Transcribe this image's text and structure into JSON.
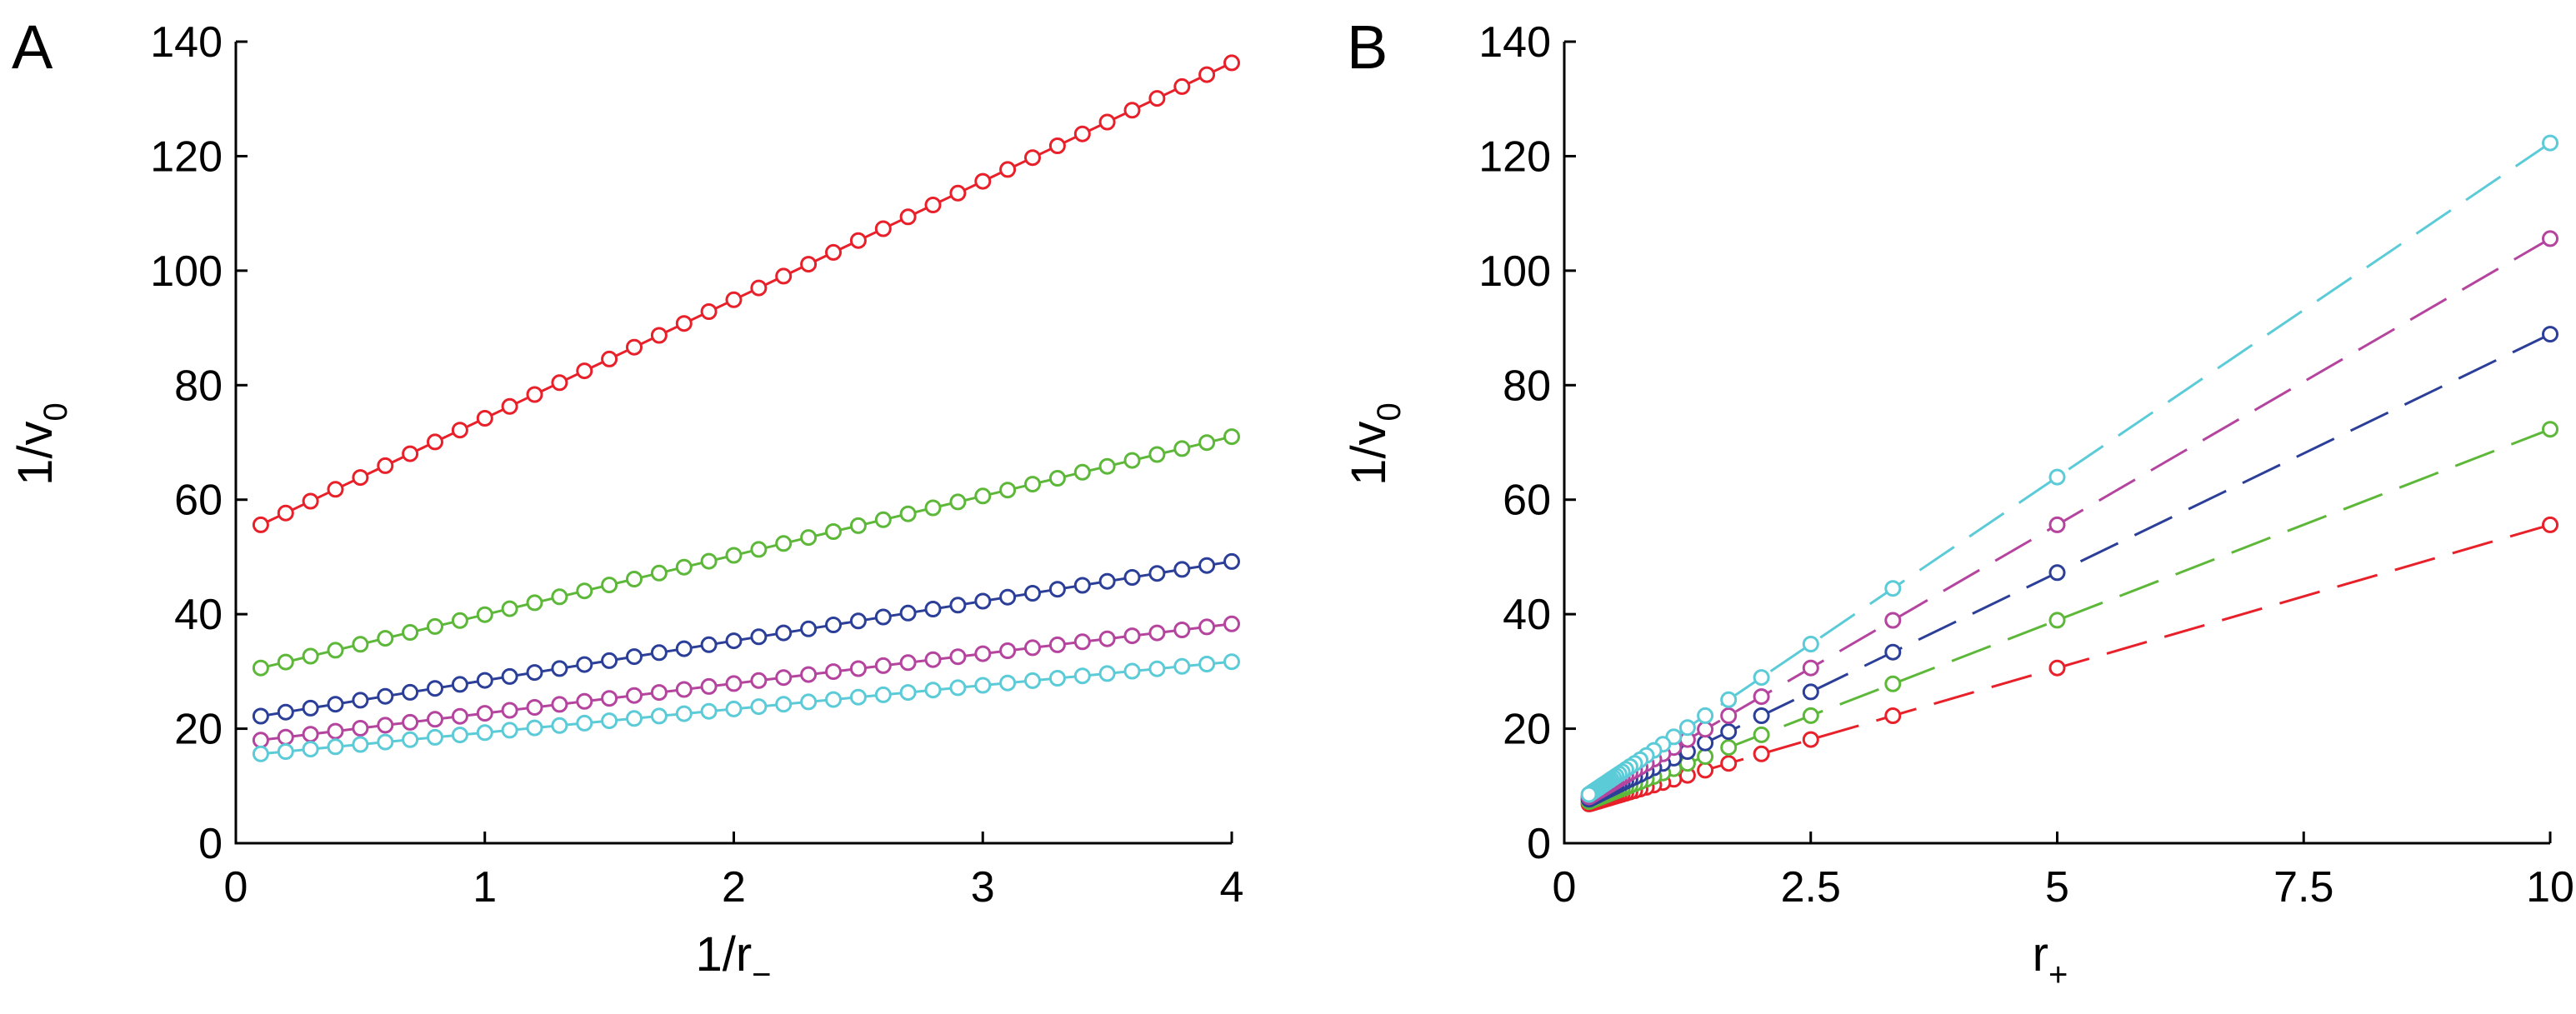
{
  "chart_data": [
    {
      "type": "line",
      "panel_label": "A",
      "xlabel": {
        "main": "1/r",
        "sub": "−"
      },
      "ylabel": {
        "main": "1/v",
        "sub": "0"
      },
      "xlim": [
        0,
        4
      ],
      "ylim": [
        0,
        140
      ],
      "xticks": [
        0,
        1,
        2,
        3,
        4
      ],
      "xtick_labels": [
        "0",
        "1",
        "2",
        "3",
        "4"
      ],
      "yticks": [
        0,
        20,
        40,
        60,
        80,
        100,
        120,
        140
      ],
      "ytick_labels": [
        "0",
        "20",
        "40",
        "60",
        "80",
        "100",
        "120",
        "140"
      ],
      "linestyle": "solid",
      "series": [
        {
          "name": "red",
          "color": "#e8202a",
          "x_start": 0.1,
          "x_end": 4.0,
          "n_points": 40,
          "y_start": 55.6,
          "y_end": 136.3
        },
        {
          "name": "green",
          "color": "#5db83a",
          "x_start": 0.1,
          "x_end": 4.0,
          "n_points": 40,
          "y_start": 30.6,
          "y_end": 71.0
        },
        {
          "name": "blue",
          "color": "#2b3f99",
          "x_start": 0.1,
          "x_end": 4.0,
          "n_points": 40,
          "y_start": 22.2,
          "y_end": 49.2
        },
        {
          "name": "magenta",
          "color": "#b5449e",
          "x_start": 0.1,
          "x_end": 4.0,
          "n_points": 40,
          "y_start": 18.0,
          "y_end": 38.3
        },
        {
          "name": "cyan",
          "color": "#5ccbd8",
          "x_start": 0.1,
          "x_end": 4.0,
          "n_points": 40,
          "y_start": 15.6,
          "y_end": 31.7
        }
      ]
    },
    {
      "type": "line",
      "panel_label": "B",
      "xlabel": {
        "main": "r",
        "sub": "+"
      },
      "ylabel": {
        "main": "1/v",
        "sub": "0"
      },
      "xlim": [
        0,
        10
      ],
      "ylim": [
        0,
        140
      ],
      "xticks": [
        0,
        2.5,
        5,
        7.5,
        10
      ],
      "xtick_labels": [
        "0",
        "2.5",
        "5",
        "7.5",
        "10"
      ],
      "yticks": [
        0,
        20,
        40,
        60,
        80,
        100,
        120,
        140
      ],
      "ytick_labels": [
        "0",
        "20",
        "40",
        "60",
        "80",
        "100",
        "120",
        "140"
      ],
      "linestyle": "dashed",
      "x": [
        10,
        5,
        3.333,
        2.5,
        2.0,
        1.667,
        1.429,
        1.25,
        1.111,
        1.0,
        0.909,
        0.833,
        0.769,
        0.714,
        0.667,
        0.625,
        0.588,
        0.556,
        0.526,
        0.5,
        0.476,
        0.455,
        0.435,
        0.417,
        0.4,
        0.385,
        0.37,
        0.357,
        0.345,
        0.333,
        0.323,
        0.313,
        0.303,
        0.294,
        0.286,
        0.278,
        0.27,
        0.263,
        0.256,
        0.25
      ],
      "series": [
        {
          "name": "red",
          "color": "#e8202a",
          "y_at_x0": 5.6,
          "slope": 5.0
        },
        {
          "name": "green",
          "color": "#5db83a",
          "y_at_x0": 5.6,
          "slope": 6.67
        },
        {
          "name": "blue",
          "color": "#2b3f99",
          "y_at_x0": 5.6,
          "slope": 8.33
        },
        {
          "name": "magenta",
          "color": "#b5449e",
          "y_at_x0": 5.6,
          "slope": 10.0
        },
        {
          "name": "cyan",
          "color": "#5ccbd8",
          "y_at_x0": 5.6,
          "slope": 11.67
        }
      ]
    }
  ]
}
